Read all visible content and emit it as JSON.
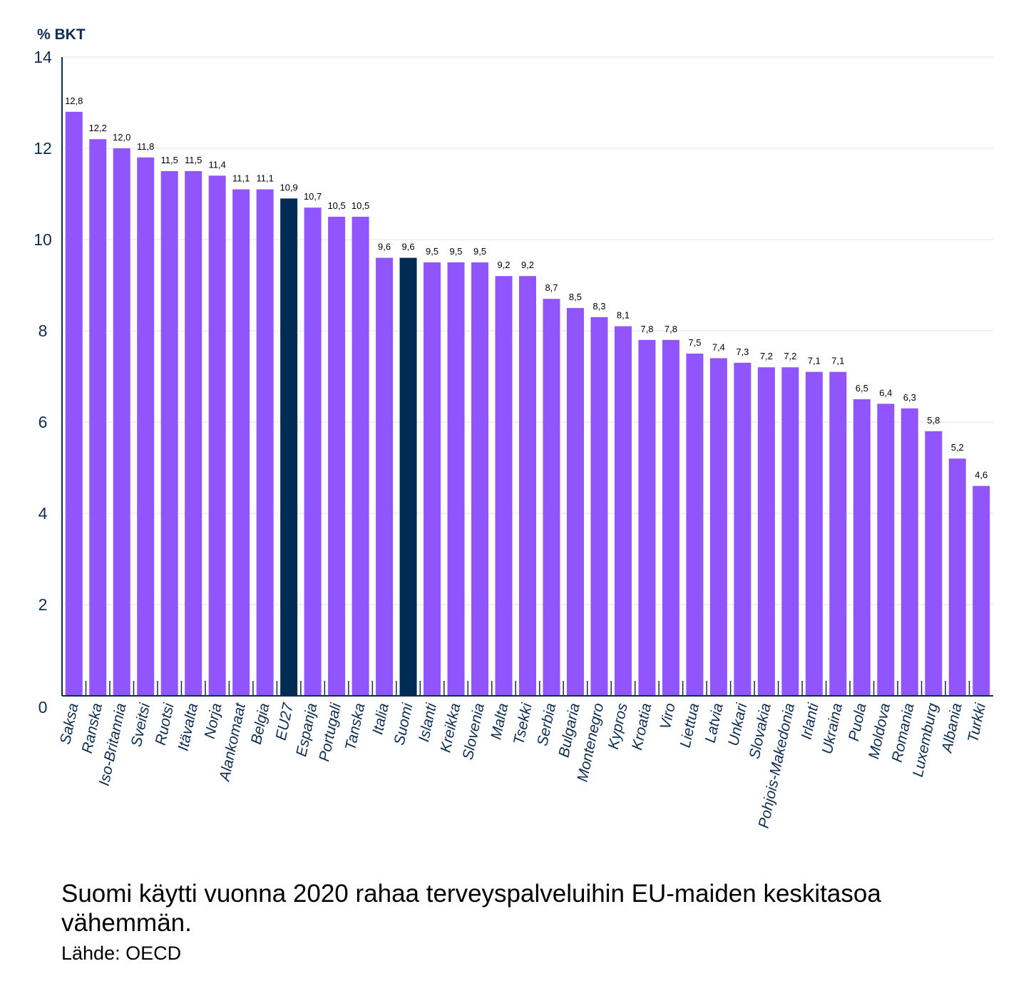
{
  "chart_data": {
    "type": "bar",
    "ylabel": "% BKT",
    "ylim": [
      0,
      14
    ],
    "yticks": [
      0,
      2,
      4,
      6,
      8,
      10,
      12,
      14
    ],
    "grid": true,
    "categories": [
      "Saksa",
      "Ranska",
      "Iso-Britannia",
      "Sveitsi",
      "Ruotsi",
      "Itävalta",
      "Norja",
      "Alankomaat",
      "Belgia",
      "EU27",
      "Espanja",
      "Portugali",
      "Tanska",
      "Italia",
      "Suomi",
      "Islanti",
      "Kreikka",
      "Slovenia",
      "Malta",
      "Tsekki",
      "Serbia",
      "Bulgaria",
      "Montenegro",
      "Kypros",
      "Kroatia",
      "Viro",
      "Liettua",
      "Latvia",
      "Unkari",
      "Slovakia",
      "Pohjois-Makedonia",
      "Irlanti",
      "Ukraina",
      "Puola",
      "Moldova",
      "Romania",
      "Luxemburg",
      "Albania",
      "Turkki"
    ],
    "values": [
      12.8,
      12.2,
      12.0,
      11.8,
      11.5,
      11.5,
      11.4,
      11.1,
      11.1,
      10.9,
      10.7,
      10.5,
      10.5,
      9.6,
      9.6,
      9.5,
      9.5,
      9.5,
      9.2,
      9.2,
      8.7,
      8.5,
      8.3,
      8.1,
      7.8,
      7.8,
      7.5,
      7.4,
      7.3,
      7.2,
      7.2,
      7.1,
      7.1,
      6.5,
      6.4,
      6.3,
      5.8,
      5.2,
      4.6
    ],
    "highlighted": [
      "EU27",
      "Suomi"
    ],
    "colors": {
      "bar": "#9155fd",
      "highlight": "#002b55",
      "axis": "#0e2d50",
      "grid": "#e3e3e3"
    }
  },
  "caption": "Suomi käytti vuonna 2020 rahaa terveyspalveluihin EU-maiden keskitasoa vähemmän.",
  "source": "Lähde: OECD"
}
